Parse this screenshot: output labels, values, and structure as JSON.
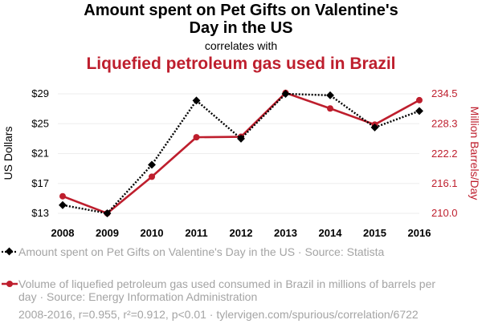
{
  "title_line1": "Amount spent on Pet Gifts on Valentine's",
  "title_line2": "Day in the US",
  "correlates": "correlates with",
  "subtitle": "Liquefied petroleum gas used in Brazil",
  "legend": {
    "series1": "Amount spent on Pet Gifts on Valentine's Day in the US · Source: Statista",
    "series2": "Volume of liquefied petroleum gas used consumed in Brazil in millions of barrels per day · Source: Energy Information Administration"
  },
  "footer": "2008-2016, r=0.955, r²=0.912, p<0.01 · tylervigen.com/spurious/correlation/6722",
  "colors": {
    "series1": "#000000",
    "series2": "#be1e2d",
    "muted": "#a4a4a4",
    "grid": "#eeeeee"
  },
  "chart_data": {
    "type": "line",
    "x": [
      2008,
      2009,
      2010,
      2011,
      2012,
      2013,
      2014,
      2015,
      2016
    ],
    "xticks": [
      "2008",
      "2009",
      "2010",
      "2011",
      "2012",
      "2013",
      "2014",
      "2015",
      "2016"
    ],
    "ylabel_left": "US Dollars",
    "ylabel_right": "Million Barrels/Day",
    "ylim_left": [
      13,
      29
    ],
    "ylim_right": [
      210.0,
      234.5
    ],
    "yticks_left": [
      "$13",
      "$17",
      "$21",
      "$25",
      "$29"
    ],
    "yticks_left_values": [
      13,
      17,
      21,
      25,
      29
    ],
    "yticks_right": [
      "210.0",
      "216.1",
      "222.2",
      "228.3",
      "234.5"
    ],
    "yticks_right_values": [
      210.0,
      216.1,
      222.2,
      228.3,
      234.5
    ],
    "series": [
      {
        "name": "Amount spent on Pet Gifts on Valentine's Day in the US",
        "axis": "left",
        "style": "dotted",
        "marker": "diamond",
        "values": [
          14.1,
          13.0,
          19.5,
          28.1,
          23.0,
          29.0,
          28.8,
          24.5,
          26.7
        ]
      },
      {
        "name": "Liquefied petroleum gas used in Brazil",
        "axis": "right",
        "style": "solid",
        "marker": "circle",
        "values": [
          213.5,
          210.0,
          217.5,
          225.6,
          225.7,
          234.7,
          231.5,
          228.2,
          233.2
        ]
      }
    ]
  }
}
